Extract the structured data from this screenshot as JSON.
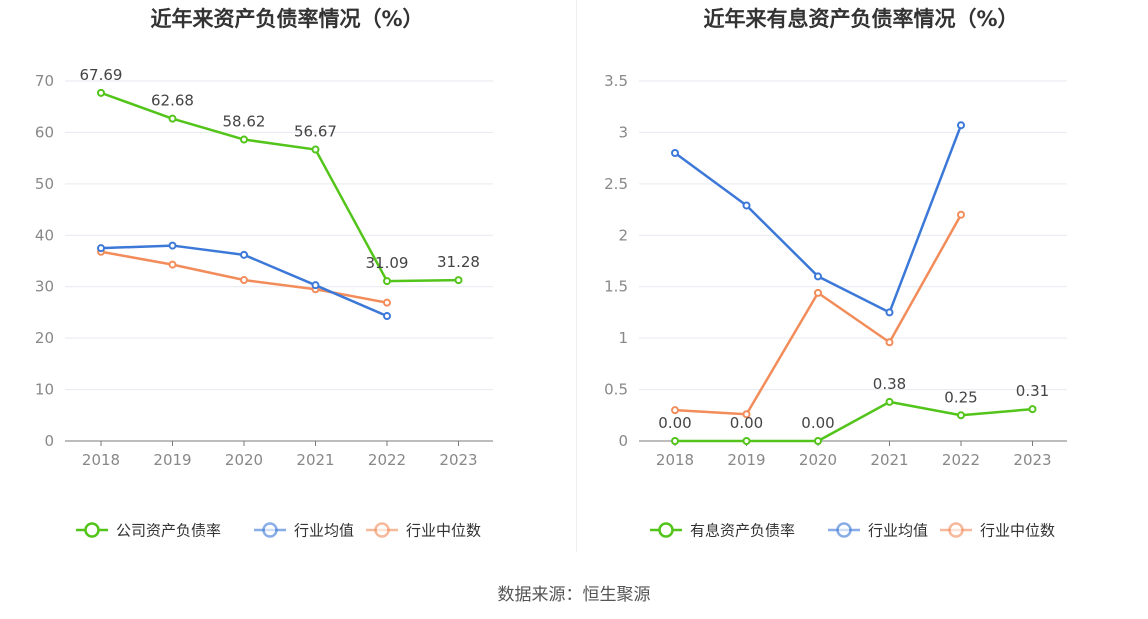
{
  "chart_data": [
    {
      "type": "line",
      "title": "近年来资产负债率情况（%）",
      "categories": [
        "2018",
        "2019",
        "2020",
        "2021",
        "2022",
        "2023"
      ],
      "ylim": [
        0,
        70
      ],
      "yticks": [
        0,
        10,
        20,
        30,
        40,
        50,
        60,
        70
      ],
      "ytick_labels": [
        "0",
        "10",
        "20",
        "30",
        "40",
        "50",
        "60",
        "70"
      ],
      "grid": true,
      "legend_position": "bottom",
      "series": [
        {
          "name": "公司资产负债率",
          "color": "#52c41a",
          "values": [
            67.69,
            62.68,
            58.62,
            56.67,
            31.09,
            31.28
          ],
          "labels": [
            "67.69",
            "62.68",
            "58.62",
            "56.67",
            "31.09",
            "31.28"
          ]
        },
        {
          "name": "行业均值",
          "color": "#3c78d8",
          "values": [
            37.5,
            38.0,
            36.2,
            30.3,
            24.3,
            null
          ]
        },
        {
          "name": "行业中位数",
          "color": "#f28c5a",
          "values": [
            36.8,
            34.3,
            31.3,
            29.5,
            26.9,
            null
          ]
        }
      ]
    },
    {
      "type": "line",
      "title": "近年来有息资产负债率情况（%）",
      "categories": [
        "2018",
        "2019",
        "2020",
        "2021",
        "2022",
        "2023"
      ],
      "ylim": [
        0,
        3.5
      ],
      "yticks": [
        0,
        0.5,
        1,
        1.5,
        2,
        2.5,
        3,
        3.5
      ],
      "ytick_labels": [
        "0",
        "0.5",
        "1",
        "1.5",
        "2",
        "2.5",
        "3",
        "3.5"
      ],
      "grid": true,
      "legend_position": "bottom",
      "series": [
        {
          "name": "有息资产负债率",
          "color": "#52c41a",
          "values": [
            0,
            0,
            0,
            0.38,
            0.25,
            0.31
          ],
          "labels": [
            "0.00",
            "0.00",
            "0.00",
            "0.38",
            "0.25",
            "0.31"
          ]
        },
        {
          "name": "行业均值",
          "color": "#3c78d8",
          "values": [
            2.8,
            2.29,
            1.6,
            1.25,
            3.07,
            null
          ]
        },
        {
          "name": "行业中位数",
          "color": "#f28c5a",
          "values": [
            0.3,
            0.26,
            1.44,
            0.96,
            2.2,
            null
          ]
        }
      ]
    }
  ],
  "source_text": "数据来源：恒生聚源"
}
